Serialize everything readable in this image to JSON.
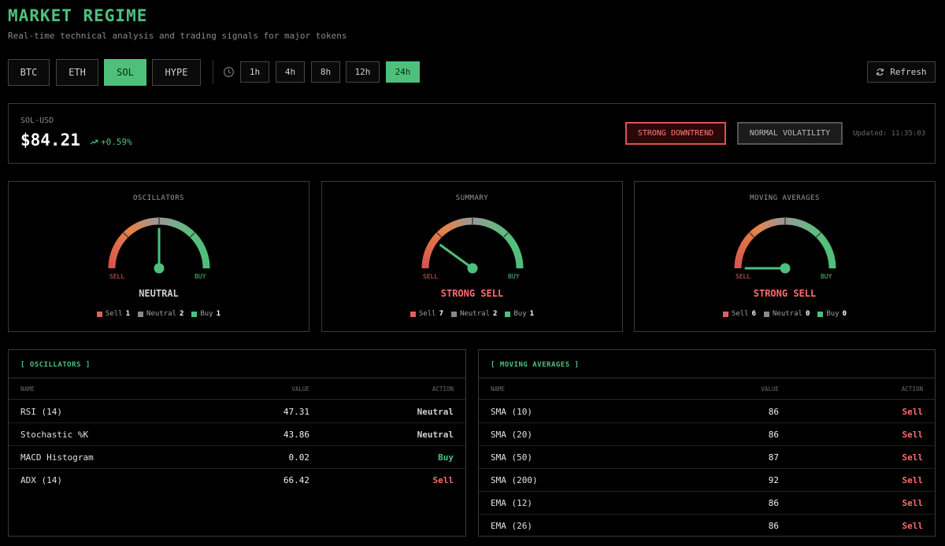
{
  "header": {
    "title": "MARKET REGIME",
    "subtitle": "Real-time technical analysis and trading signals for major tokens"
  },
  "tokens": [
    {
      "label": "BTC",
      "active": false
    },
    {
      "label": "ETH",
      "active": false
    },
    {
      "label": "SOL",
      "active": true
    },
    {
      "label": "HYPE",
      "active": false
    }
  ],
  "timeframes": [
    {
      "label": "1h",
      "active": false
    },
    {
      "label": "4h",
      "active": false
    },
    {
      "label": "8h",
      "active": false
    },
    {
      "label": "12h",
      "active": false
    },
    {
      "label": "24h",
      "active": true
    }
  ],
  "refresh_label": "Refresh",
  "ticker": {
    "pair": "SOL-USD",
    "price": "$84.21",
    "change": "+0.59%",
    "trend_badge": "STRONG DOWNTREND",
    "volatility_badge": "NORMAL VOLATILITY",
    "updated": "Updated: 11:35:03"
  },
  "gauges": [
    {
      "title": "OSCILLATORS",
      "sell_label": "SELL",
      "buy_label": "BUY",
      "result": "NEUTRAL",
      "result_color": "#cfcfcf",
      "needle": 0.5,
      "legend": {
        "sell_label": "Sell",
        "sell": "1",
        "neutral_label": "Neutral",
        "neutral": "2",
        "buy_label": "Buy",
        "buy": "1"
      }
    },
    {
      "title": "SUMMARY",
      "sell_label": "SELL",
      "buy_label": "BUY",
      "result": "STRONG SELL",
      "result_color": "#ff6b6b",
      "needle": 0.2,
      "legend": {
        "sell_label": "Sell",
        "sell": "7",
        "neutral_label": "Neutral",
        "neutral": "2",
        "buy_label": "Buy",
        "buy": "1"
      }
    },
    {
      "title": "MOVING AVERAGES",
      "sell_label": "SELL",
      "buy_label": "BUY",
      "result": "STRONG SELL",
      "result_color": "#ff6b6b",
      "needle": 0.0,
      "legend": {
        "sell_label": "Sell",
        "sell": "6",
        "neutral_label": "Neutral",
        "neutral": "0",
        "buy_label": "Buy",
        "buy": "0"
      }
    }
  ],
  "oscillators_table": {
    "heading": "[ OSCILLATORS ]",
    "columns": {
      "name": "NAME",
      "value": "VALUE",
      "action": "ACTION"
    },
    "rows": [
      {
        "name": "RSI (14)",
        "value": "47.31",
        "action": "Neutral"
      },
      {
        "name": "Stochastic %K",
        "value": "43.86",
        "action": "Neutral"
      },
      {
        "name": "MACD Histogram",
        "value": "0.02",
        "action": "Buy"
      },
      {
        "name": "ADX (14)",
        "value": "66.42",
        "action": "Sell"
      }
    ]
  },
  "ma_table": {
    "heading": "[ MOVING AVERAGES ]",
    "columns": {
      "name": "NAME",
      "value": "VALUE",
      "action": "ACTION"
    },
    "rows": [
      {
        "name": "SMA (10)",
        "value": "86",
        "action": "Sell"
      },
      {
        "name": "SMA (20)",
        "value": "86",
        "action": "Sell"
      },
      {
        "name": "SMA (50)",
        "value": "87",
        "action": "Sell"
      },
      {
        "name": "SMA (200)",
        "value": "92",
        "action": "Sell"
      },
      {
        "name": "EMA (12)",
        "value": "86",
        "action": "Sell"
      },
      {
        "name": "EMA (26)",
        "value": "86",
        "action": "Sell"
      }
    ]
  },
  "colors": {
    "accent": "#4ec07c",
    "sell": "#ff6b6b",
    "neutral": "#8a8a8a",
    "buy": "#4ec07c"
  }
}
